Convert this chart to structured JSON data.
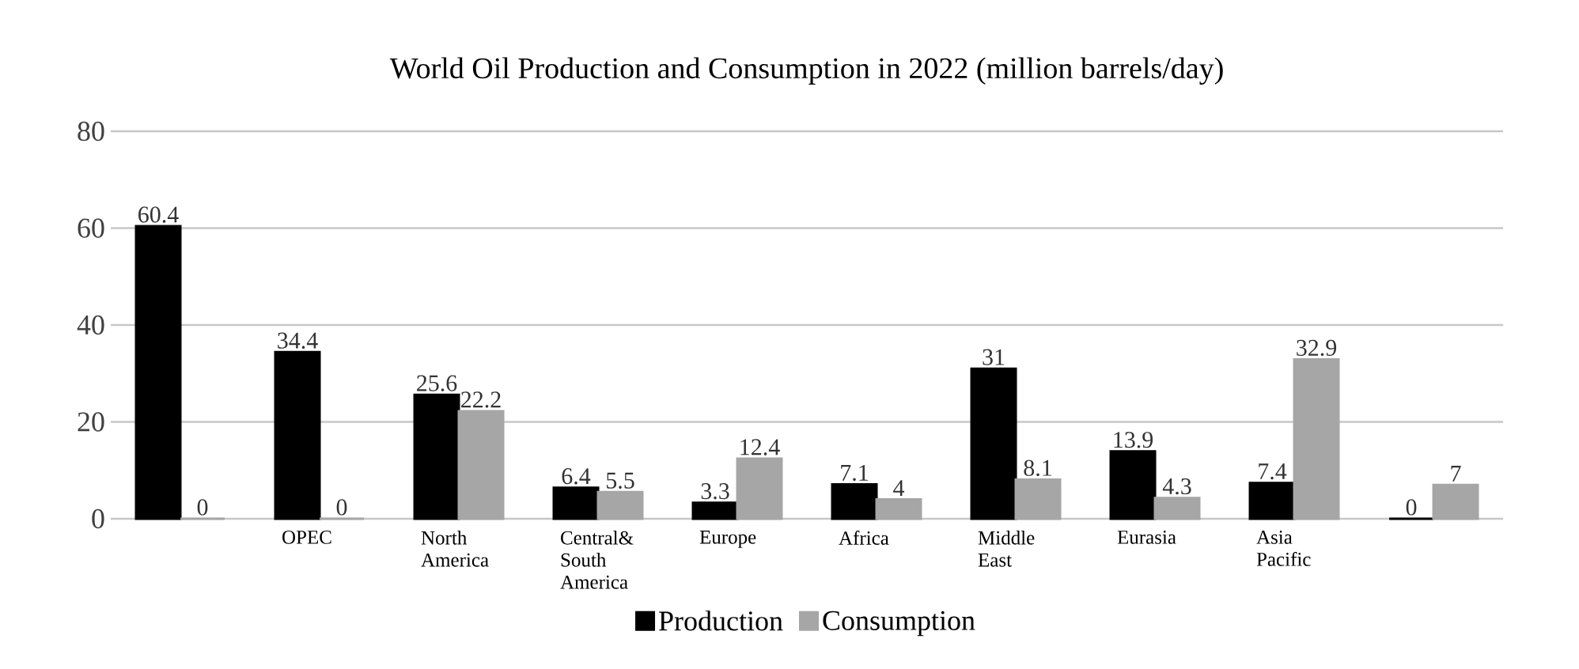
{
  "chart_data": {
    "type": "bar",
    "title": "World Oil Production and Consumption in 2022 (million barrels/day)",
    "categories": [
      null,
      "OPEC",
      "North America",
      "Central& South America",
      "Europe",
      "Africa",
      "Middle East",
      "Eurasia",
      "Asia Pacific",
      null
    ],
    "series": [
      {
        "name": "Production",
        "color": "#000000",
        "values": [
          60.4,
          34.4,
          25.6,
          6.4,
          3.3,
          7.1,
          31,
          13.9,
          7.4,
          0
        ]
      },
      {
        "name": "Consumption",
        "color": "#a6a6a6",
        "values": [
          0,
          0,
          22.2,
          5.5,
          12.4,
          4,
          8.1,
          4.3,
          32.9,
          7
        ]
      }
    ],
    "ylim": [
      0,
      80
    ],
    "yticks": [
      0,
      20,
      40,
      60,
      80
    ],
    "grid": "y",
    "legend": "bottom",
    "data_labels": true
  }
}
